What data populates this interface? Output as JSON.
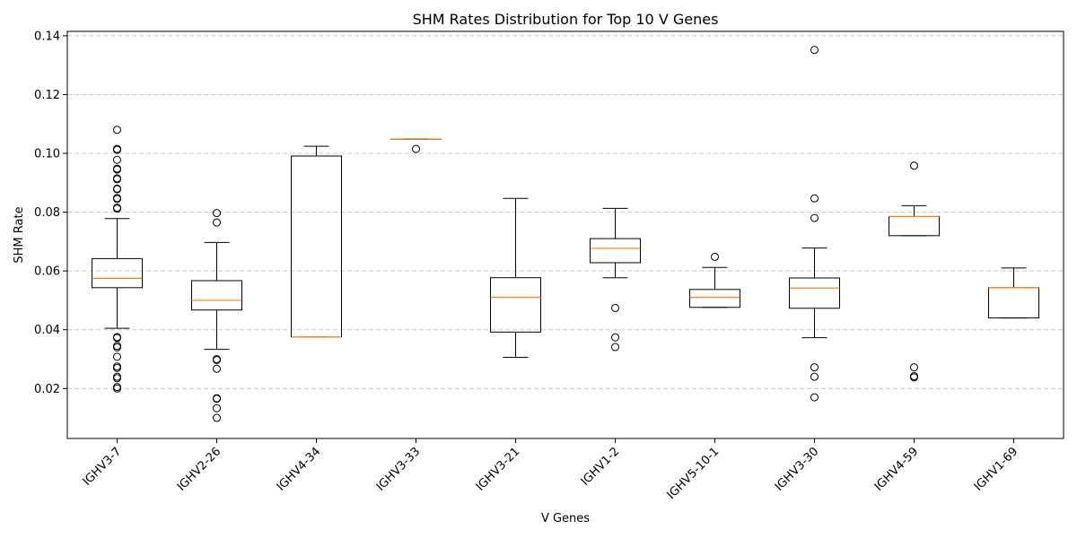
{
  "chart_data": {
    "type": "box",
    "title": "SHM Rates Distribution for Top 10 V Genes",
    "xlabel": "V Genes",
    "ylabel": "SHM Rate",
    "ylim": [
      0.003,
      0.1415
    ],
    "yticks": [
      0.02,
      0.04,
      0.06,
      0.08,
      0.1,
      0.12,
      0.14
    ],
    "ytick_labels": [
      "0.02",
      "0.04",
      "0.06",
      "0.08",
      "0.10",
      "0.12",
      "0.14"
    ],
    "grid": "horizontal dashed",
    "colors": {
      "box": "#000000",
      "median": "#ff7f0e",
      "grid": "#c8c8c8"
    },
    "categories": [
      "IGHV3-7",
      "IGHV2-26",
      "IGHV4-34",
      "IGHV3-33",
      "IGHV3-21",
      "IGHV1-2",
      "IGHV5-10-1",
      "IGHV3-30",
      "IGHV4-59",
      "IGHV1-69"
    ],
    "boxes": [
      {
        "whisker_low": 0.0405,
        "q1": 0.0543,
        "median": 0.0575,
        "q3": 0.0642,
        "whisker_high": 0.0778,
        "fliers": [
          0.108,
          0.1015,
          0.1012,
          0.0978,
          0.0948,
          0.0945,
          0.0915,
          0.0912,
          0.088,
          0.0878,
          0.0848,
          0.0845,
          0.0815,
          0.0812,
          0.0375,
          0.0372,
          0.0345,
          0.034,
          0.0308,
          0.0275,
          0.027,
          0.024,
          0.0235,
          0.0205,
          0.02
        ]
      },
      {
        "whisker_low": 0.0333,
        "q1": 0.0467,
        "median": 0.05,
        "q3": 0.0567,
        "whisker_high": 0.0697,
        "fliers": [
          0.0797,
          0.0765,
          0.03,
          0.0297,
          0.0267,
          0.0167,
          0.0165,
          0.0133,
          0.01
        ]
      },
      {
        "whisker_low": 0.0375,
        "q1": 0.0375,
        "median": 0.0375,
        "q3": 0.0991,
        "whisker_high": 0.1024,
        "fliers": []
      },
      {
        "whisker_low": 0.1048,
        "q1": 0.1048,
        "median": 0.1048,
        "q3": 0.1048,
        "whisker_high": 0.1048,
        "fliers": [
          0.1015
        ]
      },
      {
        "whisker_low": 0.0306,
        "q1": 0.0392,
        "median": 0.051,
        "q3": 0.0577,
        "whisker_high": 0.0847,
        "fliers": []
      },
      {
        "whisker_low": 0.0577,
        "q1": 0.0628,
        "median": 0.0677,
        "q3": 0.071,
        "whisker_high": 0.0813,
        "fliers": [
          0.0474,
          0.0374,
          0.0341
        ]
      },
      {
        "whisker_low": 0.0476,
        "q1": 0.0476,
        "median": 0.051,
        "q3": 0.0537,
        "whisker_high": 0.0612,
        "fliers": [
          0.0648
        ]
      },
      {
        "whisker_low": 0.0373,
        "q1": 0.0473,
        "median": 0.0542,
        "q3": 0.0576,
        "whisker_high": 0.0678,
        "fliers": [
          0.1352,
          0.0847,
          0.078,
          0.0272,
          0.024,
          0.017
        ]
      },
      {
        "whisker_low": 0.072,
        "q1": 0.072,
        "median": 0.0785,
        "q3": 0.0785,
        "whisker_high": 0.0822,
        "fliers": [
          0.0958,
          0.0272,
          0.0242,
          0.0238
        ]
      },
      {
        "whisker_low": 0.044,
        "q1": 0.044,
        "median": 0.0543,
        "q3": 0.0543,
        "whisker_high": 0.061,
        "fliers": []
      }
    ]
  }
}
